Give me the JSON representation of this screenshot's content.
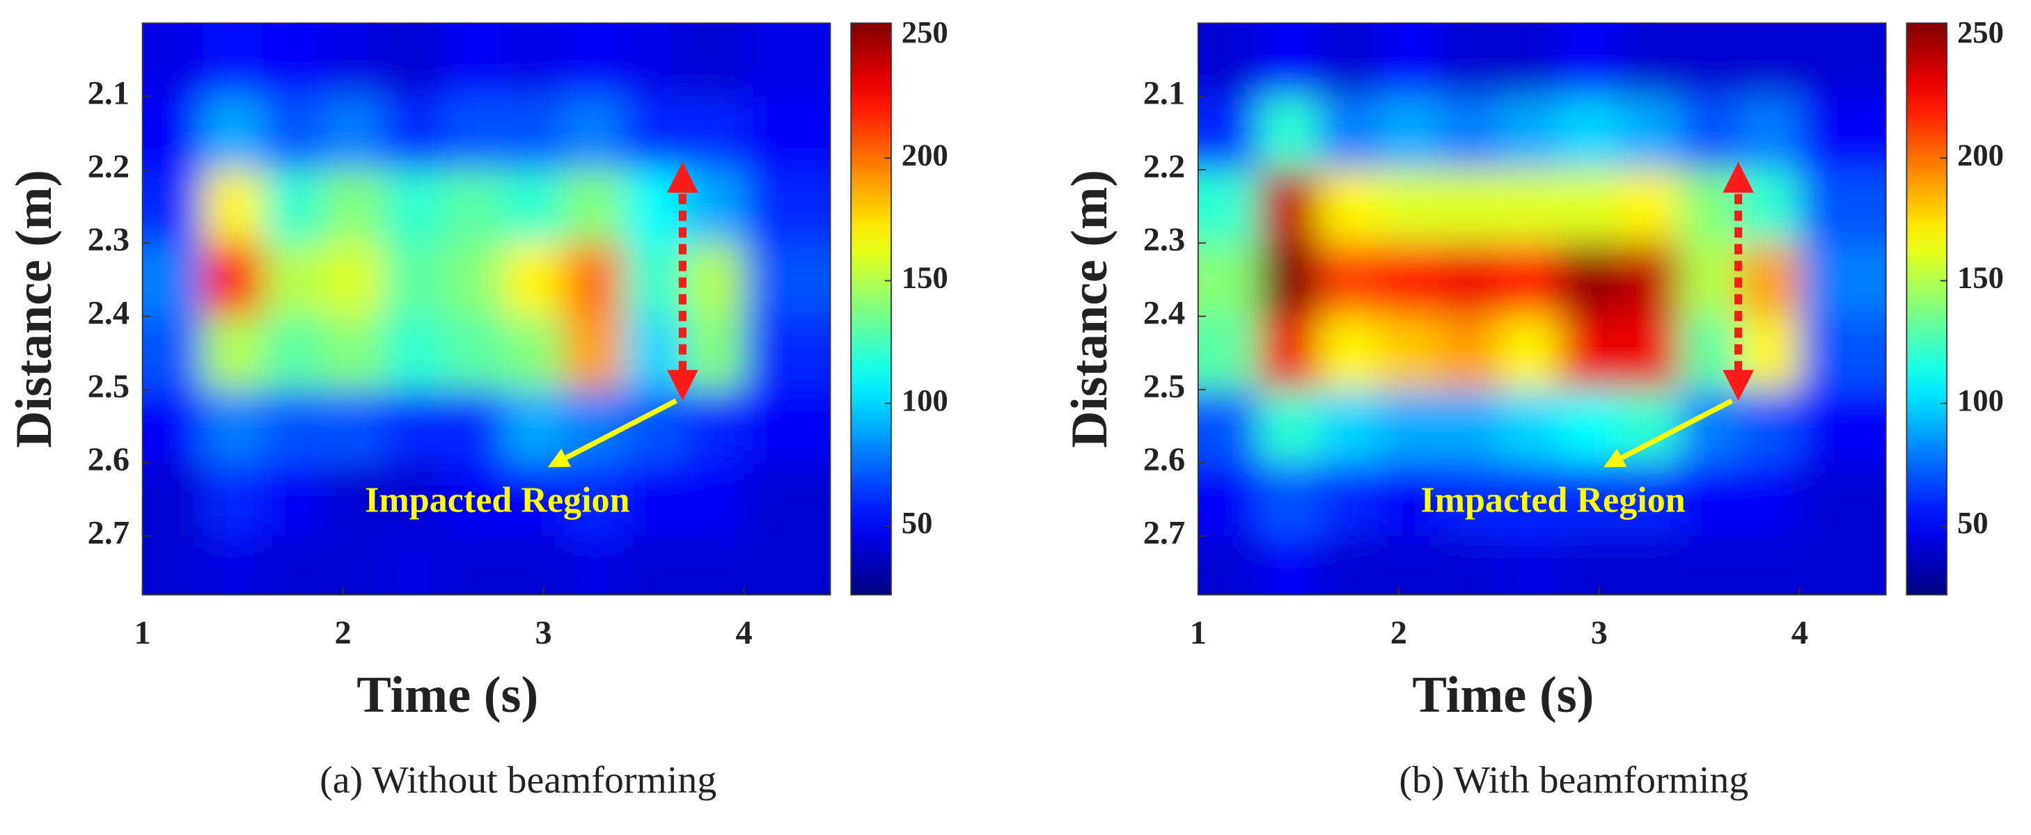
{
  "chart_data": [
    {
      "type": "heatmap",
      "caption": "(a) Without beamforming",
      "xlabel": "Time (s)",
      "ylabel": "Distance (m)",
      "annotation": "Impacted Region",
      "xlim": [
        1,
        4.43
      ],
      "xticks": [
        1,
        2,
        3,
        4
      ],
      "ylim": [
        2.0,
        2.78
      ],
      "yticks": [
        2.1,
        2.2,
        2.3,
        2.4,
        2.5,
        2.6,
        2.7
      ],
      "y_reversed": true,
      "clim": [
        22,
        255
      ],
      "cticks": [
        50,
        100,
        150,
        200,
        250
      ],
      "colormap": "jet",
      "x": [
        1.15,
        1.45,
        1.75,
        2.05,
        2.35,
        2.65,
        2.95,
        3.25,
        3.55,
        3.85,
        4.15
      ],
      "y": [
        2.05,
        2.15,
        2.25,
        2.35,
        2.45,
        2.55,
        2.65,
        2.75
      ],
      "z": [
        [
          45,
          55,
          50,
          45,
          40,
          50,
          45,
          50,
          45,
          40,
          45
        ],
        [
          50,
          90,
          70,
          80,
          60,
          70,
          70,
          80,
          60,
          60,
          50
        ],
        [
          60,
          170,
          120,
          140,
          120,
          130,
          120,
          140,
          110,
          90,
          60
        ],
        [
          80,
          220,
          150,
          160,
          130,
          140,
          170,
          200,
          120,
          150,
          70
        ],
        [
          70,
          150,
          130,
          140,
          120,
          130,
          140,
          190,
          100,
          140,
          60
        ],
        [
          50,
          80,
          70,
          70,
          60,
          60,
          90,
          80,
          70,
          60,
          50
        ],
        [
          40,
          60,
          50,
          40,
          40,
          50,
          50,
          60,
          50,
          50,
          40
        ],
        [
          40,
          45,
          40,
          40,
          45,
          40,
          40,
          45,
          40,
          40,
          40
        ]
      ]
    },
    {
      "type": "heatmap",
      "caption": "(b) With beamforming",
      "xlabel": "Time (s)",
      "ylabel": "Distance (m)",
      "annotation": "Impacted Region",
      "xlim": [
        1,
        4.43
      ],
      "xticks": [
        1,
        2,
        3,
        4
      ],
      "ylim": [
        2.0,
        2.78
      ],
      "yticks": [
        2.1,
        2.2,
        2.3,
        2.4,
        2.5,
        2.6,
        2.7
      ],
      "y_reversed": true,
      "clim": [
        22,
        255
      ],
      "cticks": [
        50,
        100,
        150,
        200,
        250
      ],
      "colormap": "jet",
      "x": [
        1.15,
        1.45,
        1.75,
        2.05,
        2.35,
        2.65,
        2.95,
        3.25,
        3.55,
        3.85,
        4.15
      ],
      "y": [
        2.05,
        2.15,
        2.25,
        2.35,
        2.45,
        2.55,
        2.65,
        2.75
      ],
      "z": [
        [
          40,
          50,
          40,
          50,
          40,
          40,
          50,
          40,
          40,
          40,
          40
        ],
        [
          60,
          120,
          80,
          90,
          80,
          90,
          100,
          90,
          70,
          80,
          50
        ],
        [
          120,
          240,
          170,
          160,
          160,
          160,
          160,
          170,
          140,
          120,
          70
        ],
        [
          140,
          255,
          210,
          220,
          230,
          220,
          250,
          240,
          150,
          190,
          80
        ],
        [
          130,
          230,
          170,
          180,
          190,
          170,
          230,
          230,
          130,
          170,
          70
        ],
        [
          70,
          120,
          100,
          90,
          90,
          100,
          110,
          120,
          80,
          70,
          50
        ],
        [
          50,
          70,
          60,
          50,
          60,
          60,
          60,
          60,
          50,
          50,
          40
        ],
        [
          40,
          50,
          40,
          40,
          40,
          45,
          40,
          40,
          40,
          40,
          40
        ]
      ]
    }
  ]
}
